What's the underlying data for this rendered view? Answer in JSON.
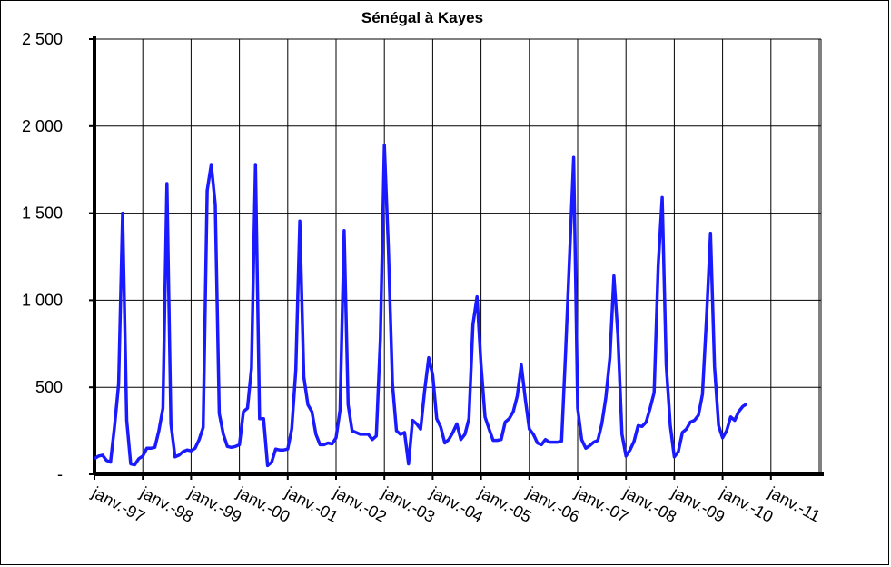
{
  "chart_data": {
    "type": "line",
    "title": "Sénégal à Kayes",
    "xlabel": "",
    "ylabel": "",
    "ylim": [
      0,
      2500
    ],
    "yticks": [
      0,
      500,
      1000,
      1500,
      2000,
      2500
    ],
    "ytick_labels": [
      "-",
      "500",
      "1 000",
      "1 500",
      "2 000",
      "2 500"
    ],
    "xtick_labels": [
      "janv.-97",
      "janv.-98",
      "janv.-99",
      "janv.-00",
      "janv.-01",
      "janv.-02",
      "janv.-03",
      "janv.-04",
      "janv.-05",
      "janv.-06",
      "janv.-07",
      "janv.-08",
      "janv.-09",
      "janv.-10",
      "janv.-11"
    ],
    "x_start": "janv.-97",
    "grid": true,
    "line_color": "#1a1aff",
    "series": [
      {
        "values": [
          90,
          105,
          110,
          80,
          70,
          280,
          520,
          1500,
          310,
          60,
          55,
          90,
          105,
          150,
          150,
          155,
          250,
          380,
          1670,
          290,
          100,
          110,
          130,
          140,
          135,
          150,
          200,
          270,
          1630,
          1780,
          1550,
          350,
          230,
          160,
          155,
          160,
          170,
          360,
          380,
          610,
          1780,
          320,
          320,
          50,
          70,
          145,
          140,
          140,
          145,
          260,
          600,
          1455,
          560,
          400,
          360,
          230,
          170,
          170,
          180,
          175,
          210,
          370,
          1400,
          400,
          250,
          240,
          230,
          230,
          230,
          200,
          220,
          780,
          1890,
          1300,
          520,
          250,
          230,
          240,
          60,
          310,
          290,
          260,
          480,
          670,
          570,
          320,
          270,
          180,
          200,
          240,
          290,
          200,
          230,
          320,
          860,
          1020,
          630,
          330,
          260,
          195,
          195,
          200,
          300,
          320,
          360,
          450,
          630,
          430,
          260,
          230,
          180,
          170,
          200,
          185,
          185,
          185,
          190,
          700,
          1250,
          1820,
          380,
          200,
          150,
          165,
          185,
          195,
          290,
          440,
          670,
          1140,
          800,
          230,
          105,
          140,
          190,
          280,
          275,
          300,
          380,
          470,
          1200,
          1590,
          630,
          280,
          100,
          130,
          240,
          260,
          300,
          310,
          340,
          460,
          900,
          1385,
          620,
          280,
          210,
          250,
          330,
          310,
          360,
          390,
          405
        ]
      }
    ]
  }
}
